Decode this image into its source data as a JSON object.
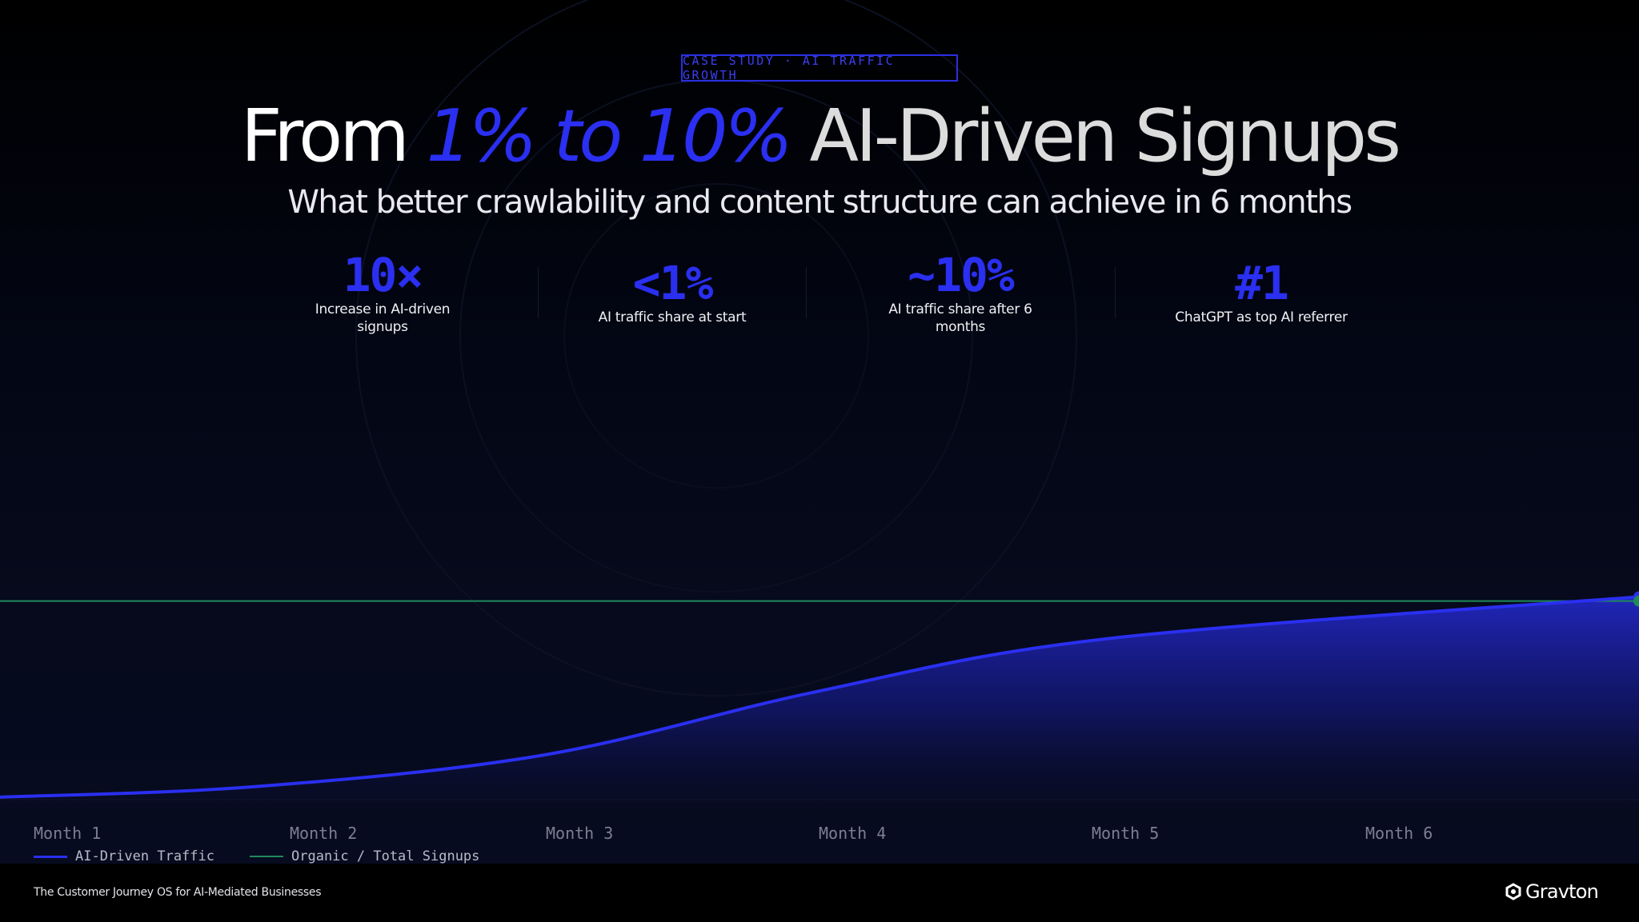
{
  "badge": "CASE STUDY · AI TRAFFIC GROWTH",
  "title": {
    "part1": "From ",
    "highlight": "1% to 10%",
    "part2": " AI-Driven Signups"
  },
  "subtitle": "What better crawlability and content structure can achieve in 6 months",
  "stats": [
    {
      "value": "10×",
      "label": "Increase in AI-driven signups"
    },
    {
      "value": "<1%",
      "label": "AI traffic share at start"
    },
    {
      "value": "~10%",
      "label": "AI traffic share after 6 months"
    },
    {
      "value": "#1",
      "label": "ChatGPT as top AI referrer"
    }
  ],
  "chart_data": {
    "type": "area",
    "categories": [
      "Month 1",
      "Month 2",
      "Month 3",
      "Month 4",
      "Month 5",
      "Month 6"
    ],
    "series": [
      {
        "name": "AI-Driven Traffic",
        "color": "#2a2ff0",
        "values": [
          0.5,
          1.0,
          2.5,
          5.5,
          8.0,
          10.0
        ]
      },
      {
        "name": "Organic / Total Signups",
        "color": "#1f8a5a",
        "values": [
          9.8,
          9.8,
          9.8,
          9.8,
          9.8,
          9.8
        ]
      }
    ],
    "ylim": [
      0,
      22
    ],
    "grid": false,
    "legend_position": "bottom-left"
  },
  "footer": {
    "tagline": "The Customer Journey OS for AI-Mediated Businesses",
    "brand": "Gravton",
    "brand_icon": "gravton-logo-icon"
  },
  "colors": {
    "accent": "#2a2ff0",
    "organic": "#1f8a5a",
    "background": "#000000"
  }
}
